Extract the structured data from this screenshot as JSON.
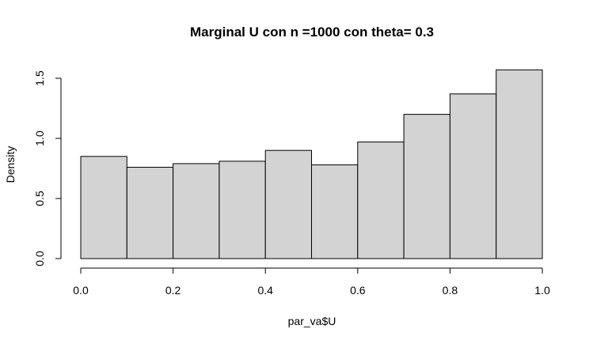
{
  "chart_data": {
    "type": "bar",
    "title": "Marginal U con n =1000 con theta= 0.3",
    "xlabel": "par_va$U",
    "ylabel": "Density",
    "bins": [
      {
        "x0": 0.0,
        "x1": 0.1,
        "density": 0.85
      },
      {
        "x0": 0.1,
        "x1": 0.2,
        "density": 0.76
      },
      {
        "x0": 0.2,
        "x1": 0.3,
        "density": 0.79
      },
      {
        "x0": 0.3,
        "x1": 0.4,
        "density": 0.81
      },
      {
        "x0": 0.4,
        "x1": 0.5,
        "density": 0.9
      },
      {
        "x0": 0.5,
        "x1": 0.6,
        "density": 0.78
      },
      {
        "x0": 0.6,
        "x1": 0.7,
        "density": 0.97
      },
      {
        "x0": 0.7,
        "x1": 0.8,
        "density": 1.2
      },
      {
        "x0": 0.8,
        "x1": 0.9,
        "density": 1.37
      },
      {
        "x0": 0.9,
        "x1": 1.0,
        "density": 1.57
      }
    ],
    "xlim": [
      0.0,
      1.0
    ],
    "ylim": [
      0.0,
      1.5
    ],
    "xticks": [
      {
        "value": 0.0,
        "label": "0.0"
      },
      {
        "value": 0.2,
        "label": "0.2"
      },
      {
        "value": 0.4,
        "label": "0.4"
      },
      {
        "value": 0.6,
        "label": "0.6"
      },
      {
        "value": 0.8,
        "label": "0.8"
      },
      {
        "value": 1.0,
        "label": "1.0"
      }
    ],
    "yticks": [
      {
        "value": 0.0,
        "label": "0.0"
      },
      {
        "value": 0.5,
        "label": "0.5"
      },
      {
        "value": 1.0,
        "label": "1.0"
      },
      {
        "value": 1.5,
        "label": "1.5"
      }
    ],
    "grid": false,
    "bar_color": "#d3d3d3",
    "edge_color": "#000000"
  }
}
